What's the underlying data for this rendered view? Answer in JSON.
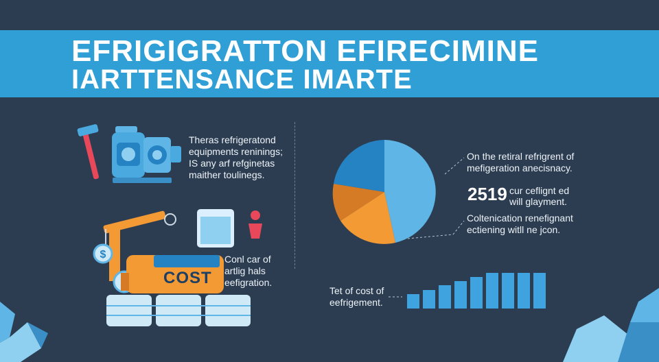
{
  "banner": {
    "line1": "EFRIGIGRATTON EFIRECIMINE",
    "line2": "IARTTENSANCE IMARTE"
  },
  "blocks": {
    "equipment": [
      "Theras refrigeratond",
      "equipments reninings;",
      "IS any arf refginetas",
      "maither toulinegs."
    ],
    "cost": [
      "Conl car of",
      "artlig hals",
      "eefigration."
    ],
    "total": [
      "Tet of cost of",
      "eefrigement."
    ],
    "pie_top": [
      "On the retiral refrigrent of",
      "mefigeration anecisnacy."
    ],
    "pie_bottom": [
      "Coltenication renefignant",
      "ectiening witll ne jcon."
    ]
  },
  "stat": {
    "value": "2519",
    "note": [
      "cur ceflignt ed",
      "will glayment."
    ]
  },
  "cost_label": "COST",
  "colors": {
    "background": "#2c3d52",
    "banner": "#2f9fd6",
    "pie_dark_blue": "#2583c4",
    "pie_light_blue": "#5fb6e6",
    "pie_orange": "#f39a34",
    "pie_dark_orange": "#d57b25",
    "bars": "#3fa3e0",
    "accent_red": "#e8485a"
  },
  "icons": [
    "hammer-icon",
    "pump-machine-icon",
    "crane-icon",
    "refrigerator-unit-icon",
    "person-icon",
    "dollar-coin-icon",
    "ice-crystals-icon"
  ]
}
